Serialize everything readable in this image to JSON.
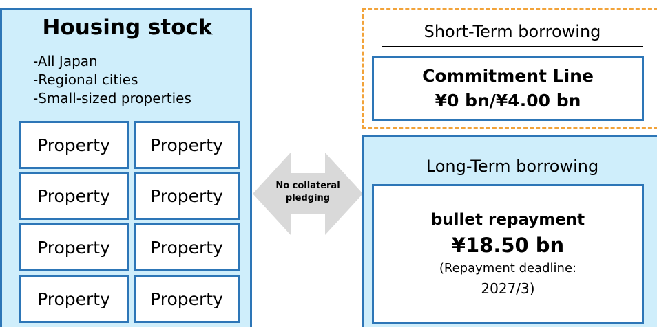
{
  "housing_stock": {
    "title": "Housing stock",
    "items": [
      "-All Japan",
      "-Regional cities",
      "-Small-sized properties"
    ],
    "properties": [
      "Property",
      "Property",
      "Property",
      "Property",
      "Property",
      "Property",
      "Property",
      "Property"
    ]
  },
  "arrow": {
    "label_lines": [
      "No collateral",
      "pledging"
    ]
  },
  "short_term": {
    "title": "Short-Term borrowing",
    "lines": [
      "Commitment Line",
      "¥0 bn/¥4.00 bn"
    ]
  },
  "long_term": {
    "title": "Long-Term borrowing",
    "lines": [
      "bullet repayment",
      "¥18.50 bn",
      "(Repayment deadline:",
      "2027/3)"
    ]
  }
}
